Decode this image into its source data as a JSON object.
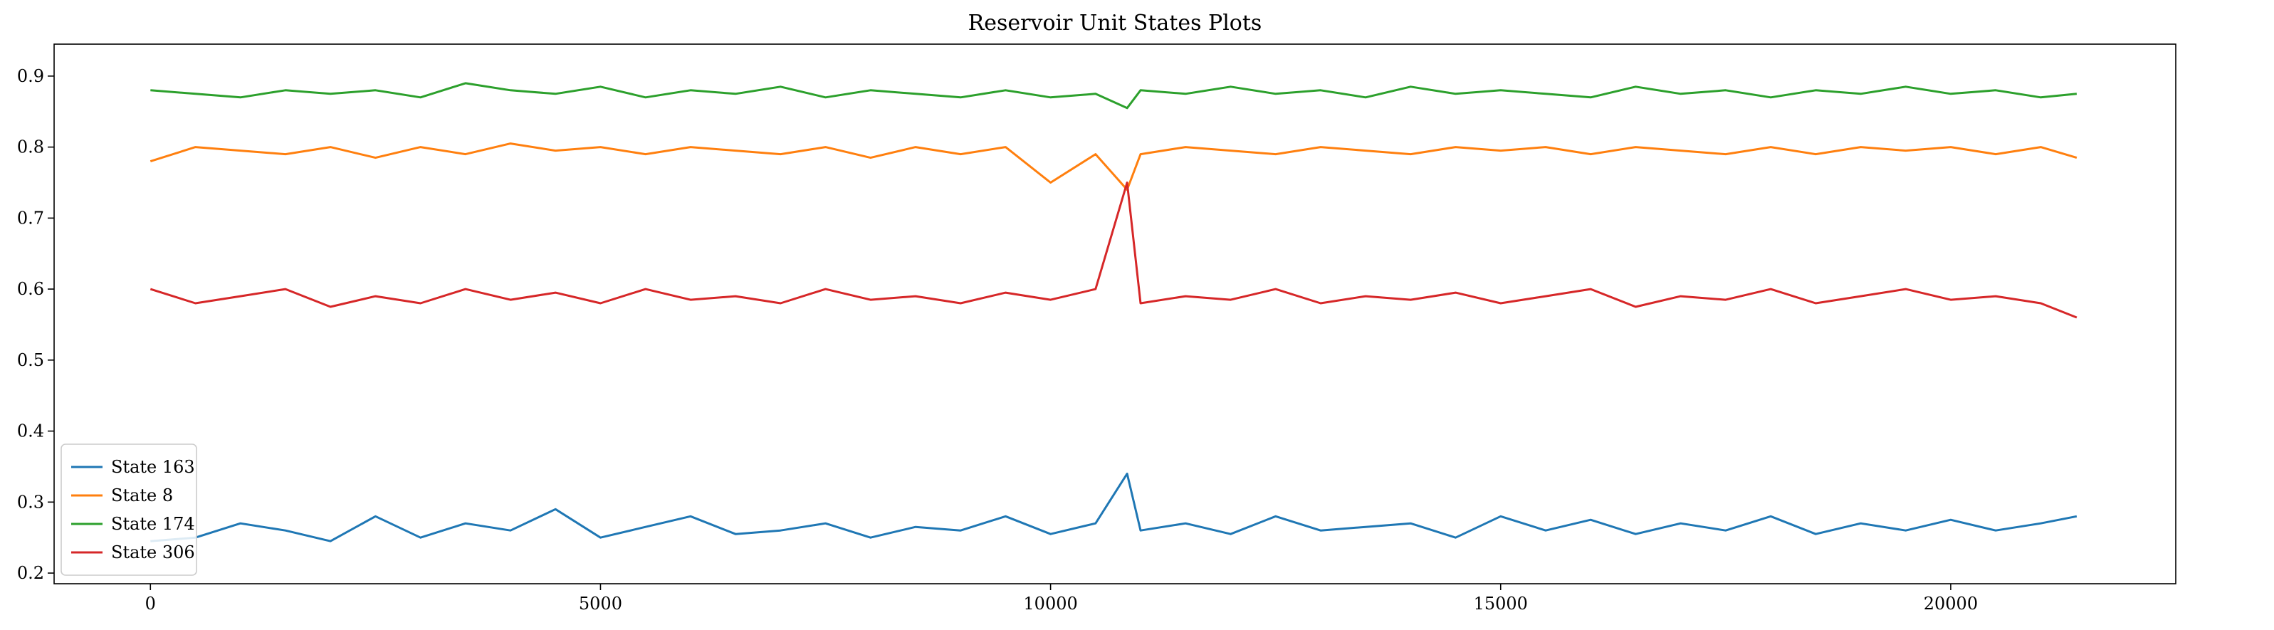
{
  "chart_data": {
    "type": "line",
    "title": "Reservoir Unit States Plots",
    "xlabel": "",
    "ylabel": "",
    "xlim": [
      -1070,
      22500
    ],
    "ylim": [
      0.185,
      0.945
    ],
    "xticks": [
      0,
      5000,
      10000,
      15000,
      20000
    ],
    "yticks": [
      0.2,
      0.3,
      0.4,
      0.5,
      0.6,
      0.7,
      0.8,
      0.9
    ],
    "grid": false,
    "legend_position": "lower-left",
    "x": [
      0,
      500,
      1000,
      1500,
      2000,
      2500,
      3000,
      3500,
      4000,
      4500,
      5000,
      5500,
      6000,
      6500,
      7000,
      7500,
      8000,
      8500,
      9000,
      9500,
      10000,
      10500,
      10850,
      11000,
      11500,
      12000,
      12500,
      13000,
      13500,
      14000,
      14500,
      15000,
      15500,
      16000,
      16500,
      17000,
      17500,
      18000,
      18500,
      19000,
      19500,
      20000,
      20500,
      21000,
      21400
    ],
    "series": [
      {
        "name": "State 163",
        "color": "#1f77b4",
        "values": [
          0.245,
          0.25,
          0.27,
          0.26,
          0.245,
          0.28,
          0.25,
          0.27,
          0.26,
          0.29,
          0.25,
          0.265,
          0.28,
          0.255,
          0.26,
          0.27,
          0.25,
          0.265,
          0.26,
          0.28,
          0.255,
          0.27,
          0.34,
          0.26,
          0.27,
          0.255,
          0.28,
          0.26,
          0.265,
          0.27,
          0.25,
          0.28,
          0.26,
          0.275,
          0.255,
          0.27,
          0.26,
          0.28,
          0.255,
          0.27,
          0.26,
          0.275,
          0.26,
          0.27,
          0.28
        ]
      },
      {
        "name": "State 8",
        "color": "#ff7f0e",
        "values": [
          0.78,
          0.8,
          0.795,
          0.79,
          0.8,
          0.785,
          0.8,
          0.79,
          0.805,
          0.795,
          0.8,
          0.79,
          0.8,
          0.795,
          0.79,
          0.8,
          0.785,
          0.8,
          0.79,
          0.8,
          0.75,
          0.79,
          0.74,
          0.79,
          0.8,
          0.795,
          0.79,
          0.8,
          0.795,
          0.79,
          0.8,
          0.795,
          0.8,
          0.79,
          0.8,
          0.795,
          0.79,
          0.8,
          0.79,
          0.8,
          0.795,
          0.8,
          0.79,
          0.8,
          0.785
        ]
      },
      {
        "name": "State 174",
        "color": "#2ca02c",
        "values": [
          0.88,
          0.875,
          0.87,
          0.88,
          0.875,
          0.88,
          0.87,
          0.89,
          0.88,
          0.875,
          0.885,
          0.87,
          0.88,
          0.875,
          0.885,
          0.87,
          0.88,
          0.875,
          0.87,
          0.88,
          0.87,
          0.875,
          0.855,
          0.88,
          0.875,
          0.885,
          0.875,
          0.88,
          0.87,
          0.885,
          0.875,
          0.88,
          0.875,
          0.87,
          0.885,
          0.875,
          0.88,
          0.87,
          0.88,
          0.875,
          0.885,
          0.875,
          0.88,
          0.87,
          0.875
        ]
      },
      {
        "name": "State 306",
        "color": "#d62728",
        "values": [
          0.6,
          0.58,
          0.59,
          0.6,
          0.575,
          0.59,
          0.58,
          0.6,
          0.585,
          0.595,
          0.58,
          0.6,
          0.585,
          0.59,
          0.58,
          0.6,
          0.585,
          0.59,
          0.58,
          0.595,
          0.585,
          0.6,
          0.75,
          0.58,
          0.59,
          0.585,
          0.6,
          0.58,
          0.59,
          0.585,
          0.595,
          0.58,
          0.59,
          0.6,
          0.575,
          0.59,
          0.585,
          0.6,
          0.58,
          0.59,
          0.6,
          0.585,
          0.59,
          0.58,
          0.56
        ]
      }
    ]
  }
}
